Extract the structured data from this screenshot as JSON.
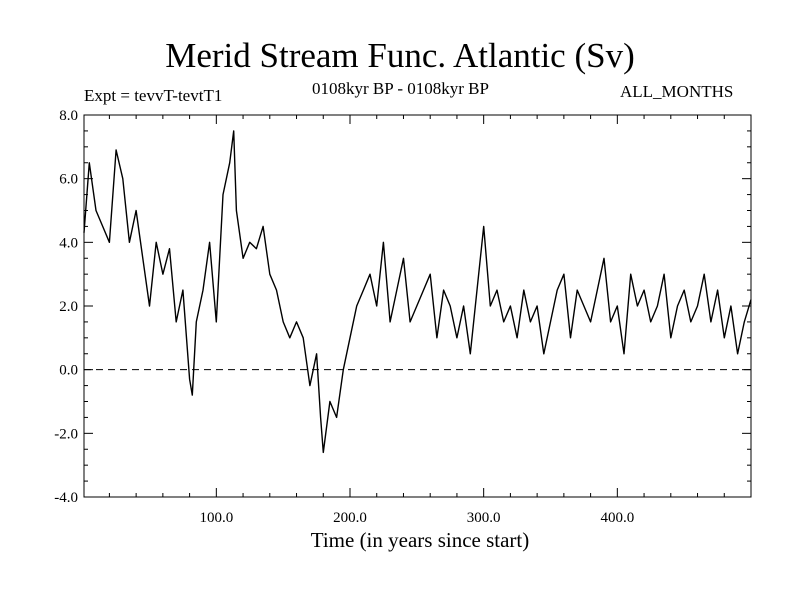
{
  "chart_data": {
    "type": "line",
    "title": "Merid Stream Func. Atlantic (Sv)",
    "expt_label": "Expt = tevvT-tevtT1",
    "period_label": "0108kyr BP - 0108kyr BP",
    "season_label": "ALL_MONTHS",
    "xlabel": "Time (in years since start)",
    "ylabel": "",
    "xlim": [
      1,
      500
    ],
    "ylim": [
      -4,
      8
    ],
    "x_ticks": [
      100,
      200,
      300,
      400
    ],
    "x_tick_labels": [
      "100.0",
      "200.0",
      "300.0",
      "400.0"
    ],
    "y_ticks": [
      -4,
      -2,
      0,
      2,
      4,
      6,
      8
    ],
    "y_tick_labels": [
      "-4.0",
      "-2.0",
      "0.0",
      "2.0",
      "4.0",
      "6.0",
      "8.0"
    ],
    "reference_line": {
      "y": 0,
      "style": "dashed"
    },
    "series": [
      {
        "name": "Merid Stream Func. Atlantic",
        "x": [
          1,
          5,
          10,
          15,
          20,
          25,
          30,
          35,
          40,
          45,
          50,
          55,
          60,
          65,
          70,
          75,
          80,
          82,
          85,
          90,
          95,
          100,
          105,
          110,
          113,
          115,
          120,
          125,
          130,
          135,
          140,
          145,
          150,
          155,
          160,
          165,
          170,
          175,
          178,
          180,
          185,
          190,
          195,
          200,
          205,
          210,
          215,
          220,
          225,
          230,
          235,
          240,
          245,
          250,
          255,
          260,
          265,
          270,
          275,
          280,
          285,
          290,
          295,
          300,
          305,
          310,
          315,
          320,
          325,
          330,
          335,
          340,
          345,
          350,
          355,
          360,
          365,
          370,
          375,
          380,
          385,
          390,
          395,
          400,
          405,
          410,
          415,
          420,
          425,
          430,
          435,
          440,
          445,
          450,
          455,
          460,
          465,
          470,
          475,
          480,
          485,
          490,
          495,
          500
        ],
        "values": [
          4.3,
          6.5,
          5.0,
          4.5,
          4.0,
          6.9,
          6.0,
          4.0,
          5.0,
          3.5,
          2.0,
          4.0,
          3.0,
          3.8,
          1.5,
          2.5,
          -0.3,
          -0.8,
          1.5,
          2.5,
          4.0,
          1.5,
          5.5,
          6.5,
          7.5,
          5.0,
          3.5,
          4.0,
          3.8,
          4.5,
          3.0,
          2.5,
          1.5,
          1.0,
          1.5,
          1.0,
          -0.5,
          0.5,
          -1.5,
          -2.6,
          -1.0,
          -1.5,
          0.0,
          1.0,
          2.0,
          2.5,
          3.0,
          2.0,
          4.0,
          1.5,
          2.5,
          3.5,
          1.5,
          2.0,
          2.5,
          3.0,
          1.0,
          2.5,
          2.0,
          1.0,
          2.0,
          0.5,
          2.5,
          4.5,
          2.0,
          2.5,
          1.5,
          2.0,
          1.0,
          2.5,
          1.5,
          2.0,
          0.5,
          1.5,
          2.5,
          3.0,
          1.0,
          2.5,
          2.0,
          1.5,
          2.5,
          3.5,
          1.5,
          2.0,
          0.5,
          3.0,
          2.0,
          2.5,
          1.5,
          2.0,
          3.0,
          1.0,
          2.0,
          2.5,
          1.5,
          2.0,
          3.0,
          1.5,
          2.5,
          1.0,
          2.0,
          0.5,
          1.5,
          2.2
        ]
      }
    ]
  }
}
